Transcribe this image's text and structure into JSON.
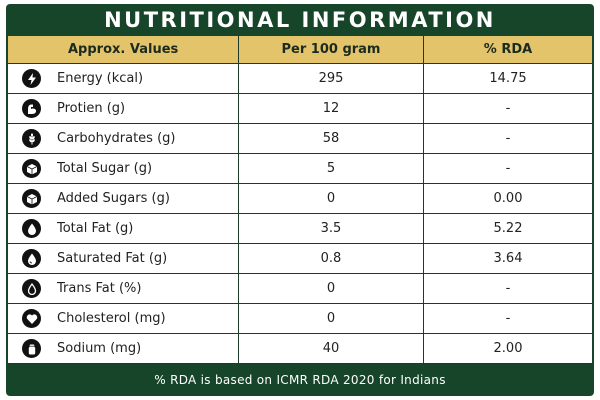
{
  "title": "NUTRITIONAL INFORMATION",
  "columns": [
    "Approx. Values",
    "Per 100 gram",
    "% RDA"
  ],
  "rows": [
    {
      "icon": "lightning-icon",
      "label": "Energy (kcal)",
      "per100": "295",
      "rda": "14.75"
    },
    {
      "icon": "flexed-arm-icon",
      "label": "Protien (g)",
      "per100": "12",
      "rda": "-"
    },
    {
      "icon": "wheat-icon",
      "label": "Carbohydrates (g)",
      "per100": "58",
      "rda": "-"
    },
    {
      "icon": "sugar-cube-icon",
      "label": "Total Sugar (g)",
      "per100": "5",
      "rda": "-"
    },
    {
      "icon": "sugar-cube-icon",
      "label": "Added Sugars (g)",
      "per100": "0",
      "rda": "0.00"
    },
    {
      "icon": "fat-drop-icon",
      "label": "Total Fat (g)",
      "per100": "3.5",
      "rda": "5.22"
    },
    {
      "icon": "fat-drop-icon",
      "label": "Saturated Fat (g)",
      "per100": "0.8",
      "rda": "3.64"
    },
    {
      "icon": "drop-outline-icon",
      "label": "Trans Fat (%)",
      "per100": "0",
      "rda": "-"
    },
    {
      "icon": "heart-icon",
      "label": "Cholesterol (mg)",
      "per100": "0",
      "rda": "-"
    },
    {
      "icon": "salt-shaker-icon",
      "label": "Sodium (mg)",
      "per100": "40",
      "rda": "2.00"
    }
  ],
  "footer": "% RDA is based on ICMR RDA 2020 for Indians",
  "colors": {
    "panel": "#17452a",
    "header_band": "#e3c46b",
    "icon_bg": "#111111"
  }
}
